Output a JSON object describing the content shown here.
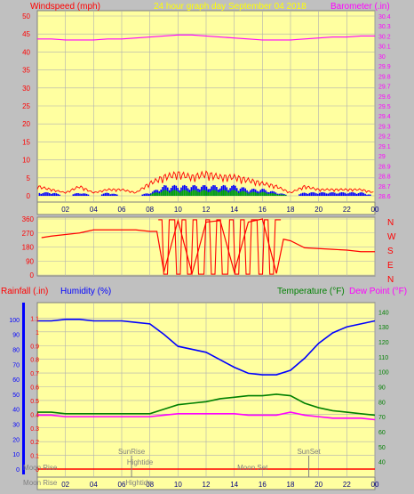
{
  "header": {
    "left_title": "Windspeed (mph)",
    "center_title": "24 hour graph day  September 04 2018",
    "right_title": "Barometer (.in)"
  },
  "colors": {
    "background": "#c0c0c0",
    "plot_background": "#ffffa0",
    "grid": "#b0b0b0",
    "wind": "#ff0000",
    "gust": "#ff0000",
    "direction": "#ff0000",
    "barometer": "#ff00ff",
    "rainfall": "#ff0000",
    "humidity": "#0000ff",
    "temperature": "#008000",
    "dewpoint": "#ff00ff",
    "annotation": "#808080",
    "left_axis_red": "#ff0000",
    "left_axis_blue": "#0000ff",
    "temp_axis": "#008000",
    "wind_bar_green": "#00aa00",
    "wind_bar_blue": "#0000ff"
  },
  "time_axis": {
    "tick_labels": [
      "02",
      "04",
      "06",
      "08",
      "10",
      "12",
      "14",
      "16",
      "18",
      "20",
      "22",
      "00"
    ]
  },
  "chart_data": [
    {
      "id": "wind-barometer",
      "type": "line",
      "title": "24 hour graph day  September 04 2018",
      "y_left": {
        "label": "Windspeed (mph)",
        "range": [
          0,
          50
        ],
        "ticks": [
          "0",
          "5",
          "10",
          "15",
          "20",
          "25",
          "30",
          "35",
          "40",
          "45",
          "50"
        ]
      },
      "y_right": {
        "label": "Barometer (.in)",
        "range": [
          28.6,
          30.4
        ],
        "ticks": [
          "28.6",
          "28.7",
          "28.8",
          "28.9",
          "29",
          "29.1",
          "29.2",
          "29.3",
          "29.4",
          "29.5",
          "29.6",
          "29.7",
          "29.8",
          "29.9",
          "30",
          "30.1",
          "30.2",
          "30.3",
          "30.4"
        ]
      },
      "x_range_hours": [
        0,
        24
      ],
      "series": [
        {
          "name": "Barometer",
          "axis": "right",
          "x": [
            0,
            1,
            2,
            3,
            4,
            5,
            6,
            7,
            8,
            9,
            10,
            11,
            12,
            13,
            14,
            15,
            16,
            17,
            18,
            19,
            20,
            21,
            22,
            23,
            24
          ],
          "values": [
            30.17,
            30.17,
            30.16,
            30.16,
            30.16,
            30.17,
            30.17,
            30.18,
            30.19,
            30.2,
            30.21,
            30.21,
            30.2,
            30.19,
            30.18,
            30.17,
            30.16,
            30.16,
            30.16,
            30.17,
            30.18,
            30.19,
            30.19,
            30.2,
            30.2
          ]
        },
        {
          "name": "Wind gust",
          "axis": "left",
          "x": [
            0,
            1,
            2,
            3,
            4,
            5,
            6,
            7,
            8,
            9,
            10,
            11,
            12,
            13,
            14,
            15,
            16,
            17,
            18,
            19,
            20,
            21,
            22,
            23,
            24
          ],
          "values": [
            3,
            2,
            1,
            3,
            1,
            2,
            2,
            1,
            4,
            6,
            7,
            6,
            7,
            6,
            6,
            5,
            4,
            3,
            1,
            3,
            2,
            2,
            2,
            2,
            1
          ]
        },
        {
          "name": "Wind average",
          "axis": "left",
          "x": [
            0,
            1,
            2,
            3,
            4,
            5,
            6,
            7,
            8,
            9,
            10,
            11,
            12,
            13,
            14,
            15,
            16,
            17,
            18,
            19,
            20,
            21,
            22,
            23,
            24
          ],
          "values": [
            1,
            1,
            0,
            1,
            0,
            1,
            0,
            0,
            1,
            3,
            3,
            3,
            3,
            3,
            3,
            2,
            2,
            1,
            0,
            1,
            1,
            1,
            1,
            1,
            0
          ]
        }
      ]
    },
    {
      "id": "wind-direction",
      "type": "line",
      "y_left": {
        "range": [
          0,
          360
        ],
        "ticks": [
          "0",
          "90",
          "180",
          "270",
          "360"
        ]
      },
      "y_right_labels": [
        "N",
        "W",
        "S",
        "E",
        "N"
      ],
      "x_range_hours": [
        0,
        24
      ],
      "series": [
        {
          "name": "Wind direction",
          "x": [
            0.3,
            1,
            2,
            3,
            4,
            5,
            6,
            7,
            8,
            8.5,
            9,
            10,
            11,
            12,
            13,
            14,
            15,
            16,
            17,
            17.5,
            18,
            19,
            20,
            21,
            22,
            23,
            24
          ],
          "values": [
            240,
            250,
            260,
            270,
            290,
            290,
            290,
            290,
            280,
            280,
            20,
            350,
            10,
            340,
            350,
            20,
            340,
            360,
            10,
            230,
            220,
            175,
            170,
            165,
            160,
            150,
            150
          ]
        }
      ]
    },
    {
      "id": "temperature-humidity",
      "type": "line",
      "y_left_rain": {
        "label": "Rainfall (.in)",
        "range": [
          0,
          1.2
        ],
        "ticks": [
          "0",
          "0.1",
          "0.2",
          "0.3",
          "0.4",
          "0.5",
          "0.6",
          "0.7",
          "0.8",
          "0.9",
          "1",
          "1.1"
        ]
      },
      "y_left_humidity": {
        "label": "Humidity (%)",
        "range": [
          0,
          110
        ],
        "ticks": [
          "0",
          "10",
          "20",
          "30",
          "40",
          "50",
          "60",
          "70",
          "80",
          "90",
          "100"
        ]
      },
      "y_right_temp": {
        "label_temperature": "Temperature (°F)",
        "label_dewpoint": "Dew Point (°F)",
        "range": [
          35,
          145
        ],
        "ticks": [
          "40",
          "50",
          "60",
          "70",
          "80",
          "90",
          "100",
          "110",
          "120",
          "130",
          "140"
        ]
      },
      "x_range_hours": [
        0,
        24
      ],
      "series": [
        {
          "name": "Humidity",
          "axis": "humidity",
          "x": [
            0,
            1,
            2,
            3,
            4,
            5,
            6,
            7,
            8,
            9,
            10,
            11,
            12,
            13,
            14,
            15,
            16,
            17,
            18,
            19,
            20,
            21,
            22,
            23,
            24
          ],
          "values": [
            99,
            99,
            100,
            100,
            99,
            99,
            99,
            98,
            97,
            90,
            82,
            80,
            78,
            73,
            68,
            64,
            63,
            63,
            66,
            74,
            84,
            91,
            95,
            97,
            99
          ]
        },
        {
          "name": "Temperature",
          "axis": "temp",
          "x": [
            0,
            1,
            2,
            3,
            4,
            5,
            6,
            7,
            8,
            9,
            10,
            11,
            12,
            13,
            14,
            15,
            16,
            17,
            18,
            19,
            20,
            21,
            22,
            23,
            24
          ],
          "values": [
            73,
            73,
            72,
            72,
            72,
            72,
            72,
            72,
            72,
            75,
            78,
            79,
            80,
            82,
            83,
            84,
            84,
            85,
            84,
            79,
            76,
            74,
            73,
            72,
            71
          ]
        },
        {
          "name": "Dew Point",
          "axis": "temp",
          "x": [
            0,
            1,
            2,
            3,
            4,
            5,
            6,
            7,
            8,
            9,
            10,
            11,
            12,
            13,
            14,
            15,
            16,
            17,
            18,
            19,
            20,
            21,
            22,
            23,
            24
          ],
          "values": [
            71,
            71,
            70,
            70,
            70,
            70,
            70,
            70,
            70,
            71,
            72,
            72,
            72,
            72,
            72,
            71,
            71,
            71,
            73,
            71,
            70,
            69,
            69,
            69,
            68
          ]
        },
        {
          "name": "Rainfall",
          "axis": "rain",
          "x": [
            0,
            24
          ],
          "values": [
            0,
            0
          ]
        }
      ],
      "annotations": [
        {
          "text": "SunRise",
          "x_hour": 6.7,
          "line": true
        },
        {
          "text": "Hightide",
          "x_hour": 7.3,
          "line": false
        },
        {
          "text": "Moon Rise",
          "x_hour": 0.2,
          "line": false
        },
        {
          "text": "Moon Set",
          "x_hour": 15.3,
          "line": false
        },
        {
          "text": "SunSet",
          "x_hour": 19.3,
          "line": true
        },
        {
          "text": "Moon Rise",
          "x_hour": 0.2,
          "line": false,
          "row": "bottom"
        },
        {
          "text": "Hightide",
          "x_hour": 7.2,
          "line": false,
          "row": "bottom"
        }
      ]
    }
  ]
}
